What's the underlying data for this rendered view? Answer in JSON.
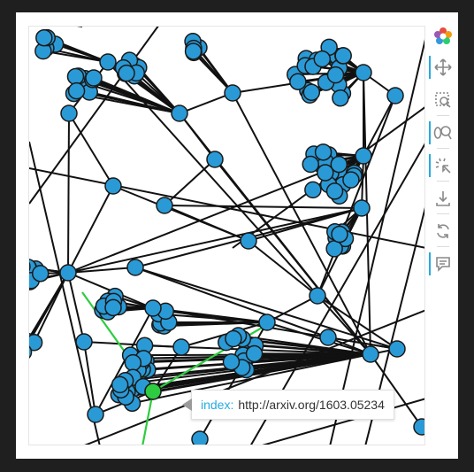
{
  "tooltip": {
    "key": "index:",
    "value": "http://arxiv.org/1603.05234"
  },
  "toolbar": {
    "tools": [
      {
        "icon": "bokeh-logo-icon"
      },
      {
        "icon": "pan-icon"
      },
      {
        "icon": "box-zoom-icon"
      },
      {
        "icon": "wheel-zoom-icon"
      },
      {
        "icon": "tap-icon"
      },
      {
        "icon": "save-icon"
      },
      {
        "icon": "reset-icon"
      },
      {
        "icon": "hover-icon"
      }
    ]
  },
  "colors": {
    "node_fill": "#2a9ad6",
    "node_stroke": "#1a1a1a",
    "edge": "#111111",
    "highlight": "#2ecc40",
    "accent": "#26aae1"
  }
}
